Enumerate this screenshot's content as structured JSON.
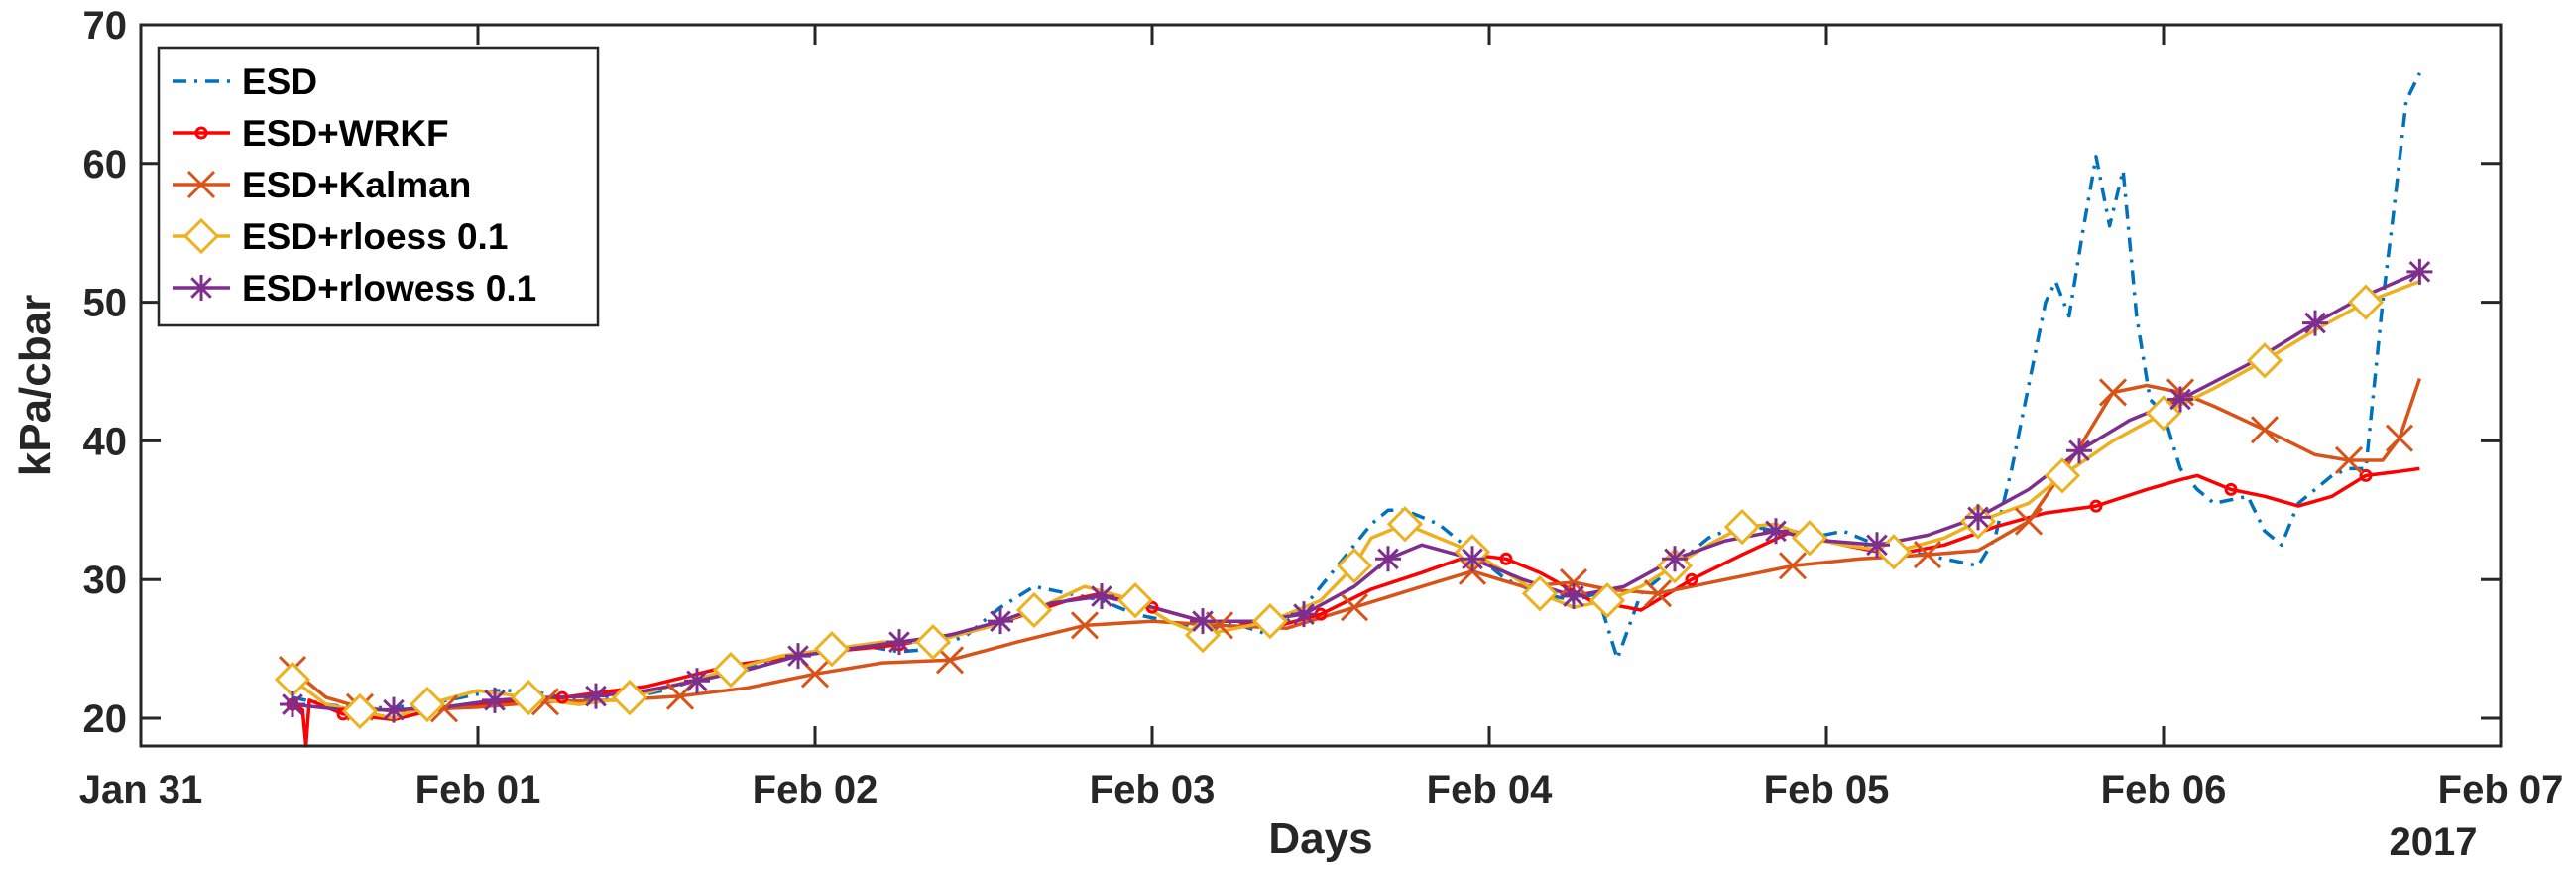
{
  "chart_data": {
    "type": "line",
    "xlabel": "Days",
    "ylabel": "kPa/cbar",
    "year_label": "2017",
    "xlim": [
      "Jan 31",
      "Feb 07"
    ],
    "ylim": [
      18,
      70
    ],
    "x_tick_labels": [
      "Jan 31",
      "Feb 01",
      "Feb 02",
      "Feb 03",
      "Feb 04",
      "Feb 05",
      "Feb 06",
      "Feb 07"
    ],
    "y_ticks": [
      20,
      30,
      40,
      50,
      60,
      70
    ],
    "legend_position": "top-left",
    "series": [
      {
        "name": "ESD",
        "color": "#0072BD",
        "style": "dash-dot",
        "marker": "none",
        "x": [
          0.45,
          0.55,
          0.65,
          0.75,
          0.85,
          0.95,
          1.05,
          1.15,
          1.25,
          1.35,
          1.45,
          1.55,
          1.65,
          1.75,
          1.85,
          1.95,
          2.05,
          2.15,
          2.25,
          2.35,
          2.45,
          2.55,
          2.65,
          2.75,
          2.85,
          2.95,
          3.05,
          3.15,
          3.25,
          3.35,
          3.45,
          3.55,
          3.65,
          3.7,
          3.75,
          3.85,
          3.95,
          4.05,
          4.15,
          4.25,
          4.32,
          4.38,
          4.45,
          4.55,
          4.65,
          4.75,
          4.85,
          4.95,
          5.05,
          5.15,
          5.25,
          5.35,
          5.45,
          5.5,
          5.55,
          5.6,
          5.65,
          5.68,
          5.72,
          5.76,
          5.8,
          5.84,
          5.88,
          5.92,
          5.96,
          6.0,
          6.05,
          6.1,
          6.15,
          6.25,
          6.3,
          6.35,
          6.4,
          6.45,
          6.5,
          6.55,
          6.6,
          6.65,
          6.68,
          6.72,
          6.76
        ],
        "y": [
          21.5,
          21,
          20.7,
          20.8,
          21,
          21.5,
          22,
          22,
          21.5,
          21.3,
          21.5,
          22,
          22.8,
          23.5,
          24,
          24.5,
          25,
          25.2,
          24.8,
          25,
          26,
          28,
          29.5,
          29,
          28.5,
          27.5,
          27,
          26.5,
          26.8,
          26,
          28,
          31,
          34,
          35,
          35,
          34,
          32,
          30,
          29,
          28.5,
          29,
          24.3,
          29,
          31,
          33,
          34,
          33.5,
          33,
          33.5,
          32.5,
          32,
          31.5,
          31,
          33,
          38,
          44,
          50,
          51.5,
          49,
          55,
          60.5,
          55.5,
          59.5,
          49,
          43,
          42,
          38,
          36.5,
          35.5,
          36,
          33.5,
          32.5,
          35.5,
          36.5,
          37.5,
          38,
          38,
          50,
          56,
          64.5,
          66.5
        ]
      },
      {
        "name": "ESD+WRKF",
        "color": "#FF0000",
        "style": "solid",
        "marker": "circle",
        "x": [
          0.45,
          0.48,
          0.49,
          0.5,
          0.6,
          0.75,
          0.85,
          1.0,
          1.25,
          1.5,
          1.75,
          2.0,
          2.25,
          2.5,
          2.75,
          2.85,
          3.0,
          3.15,
          3.25,
          3.35,
          3.5,
          3.65,
          3.8,
          3.95,
          4.05,
          4.15,
          4.3,
          4.45,
          4.6,
          4.75,
          4.9,
          5.05,
          5.2,
          5.35,
          5.5,
          5.65,
          5.8,
          5.95,
          6.05,
          6.1,
          6.2,
          6.3,
          6.4,
          6.5,
          6.6,
          6.7,
          6.76
        ],
        "y": [
          21,
          20.6,
          18,
          21.3,
          20.3,
          19.9,
          20.5,
          21,
          21.5,
          22.3,
          23.8,
          24.7,
          25.3,
          26.5,
          28.5,
          29,
          28,
          27,
          27,
          26.5,
          27.5,
          29.3,
          30.5,
          31.8,
          31.5,
          30.5,
          28.5,
          27.8,
          30,
          31.8,
          33.5,
          32.5,
          31.8,
          32.5,
          33.8,
          34.8,
          35.3,
          36.5,
          37.2,
          37.5,
          36.5,
          36,
          35.3,
          36,
          37.5,
          37.8,
          38
        ]
      },
      {
        "name": "ESD+Kalman",
        "color": "#D95319",
        "style": "solid",
        "marker": "x",
        "x": [
          0.45,
          0.55,
          0.65,
          0.75,
          0.9,
          1.0,
          1.2,
          1.4,
          1.6,
          1.8,
          2.0,
          2.2,
          2.4,
          2.6,
          2.8,
          3.0,
          3.2,
          3.4,
          3.6,
          3.8,
          3.95,
          4.1,
          4.25,
          4.35,
          4.5,
          4.7,
          4.9,
          5.1,
          5.3,
          5.45,
          5.6,
          5.75,
          5.85,
          5.95,
          6.05,
          6.15,
          6.3,
          6.45,
          6.55,
          6.65,
          6.7,
          6.76
        ],
        "y": [
          23.5,
          21.5,
          20.8,
          20.5,
          20.7,
          20.8,
          21.2,
          21.3,
          21.6,
          22.2,
          23.2,
          24,
          24.2,
          25.5,
          26.7,
          27,
          26.7,
          26.5,
          28,
          29.5,
          30.6,
          29.5,
          29.8,
          29.3,
          29,
          30,
          31,
          31.5,
          31.8,
          32.1,
          34.2,
          39.5,
          43.5,
          44,
          43.5,
          42.5,
          40.8,
          39,
          38.6,
          38.6,
          40.2,
          44.5
        ]
      },
      {
        "name": "ESD+rloess 0.1",
        "color": "#EDB120",
        "style": "solid",
        "marker": "diamond",
        "x": [
          0.45,
          0.55,
          0.65,
          0.75,
          0.85,
          1.0,
          1.15,
          1.3,
          1.45,
          1.6,
          1.75,
          1.9,
          2.05,
          2.2,
          2.35,
          2.5,
          2.65,
          2.8,
          2.95,
          3.05,
          3.15,
          3.25,
          3.35,
          3.5,
          3.6,
          3.65,
          3.75,
          3.85,
          3.95,
          4.05,
          4.15,
          4.25,
          4.35,
          4.45,
          4.55,
          4.65,
          4.75,
          4.85,
          4.95,
          5.05,
          5.2,
          5.35,
          5.45,
          5.6,
          5.7,
          5.85,
          6.0,
          6.15,
          6.3,
          6.45,
          6.6,
          6.76
        ],
        "y": [
          22.8,
          21,
          20.5,
          20,
          21,
          22,
          21.5,
          21,
          21.5,
          22.5,
          23.5,
          24.5,
          25,
          25.5,
          25.5,
          26.5,
          27.8,
          29.5,
          28.5,
          27,
          26,
          26.5,
          27,
          28.5,
          31,
          33,
          34,
          33,
          32,
          30.5,
          29,
          28,
          28.5,
          29.5,
          31,
          32.5,
          33.8,
          34,
          33,
          32.5,
          32,
          33,
          34.2,
          35.5,
          37.5,
          40,
          42,
          43.8,
          45.8,
          48,
          50,
          51.5
        ]
      },
      {
        "name": "ESD+rlowess 0.1",
        "color": "#7E2F8E",
        "style": "solid",
        "marker": "asterisk",
        "x": [
          0.45,
          0.6,
          0.75,
          0.9,
          1.05,
          1.2,
          1.35,
          1.5,
          1.65,
          1.8,
          1.95,
          2.1,
          2.25,
          2.4,
          2.55,
          2.7,
          2.85,
          3.0,
          3.15,
          3.3,
          3.45,
          3.6,
          3.7,
          3.8,
          3.95,
          4.1,
          4.25,
          4.4,
          4.55,
          4.7,
          4.85,
          5.0,
          5.15,
          5.3,
          5.45,
          5.6,
          5.75,
          5.9,
          6.05,
          6.25,
          6.45,
          6.6,
          6.76
        ],
        "y": [
          21,
          20.6,
          20.6,
          20.8,
          21.3,
          21.5,
          21.6,
          22,
          22.7,
          23.5,
          24.5,
          25,
          25.5,
          26,
          27,
          28.3,
          28.8,
          28,
          27,
          27,
          27.5,
          29.5,
          31.5,
          32.5,
          31.5,
          30,
          28.8,
          29.5,
          31.5,
          32.8,
          33.5,
          32.8,
          32.5,
          33.2,
          34.5,
          36.5,
          39.3,
          41.5,
          43,
          45.5,
          48.5,
          50.5,
          52.2
        ]
      }
    ]
  }
}
